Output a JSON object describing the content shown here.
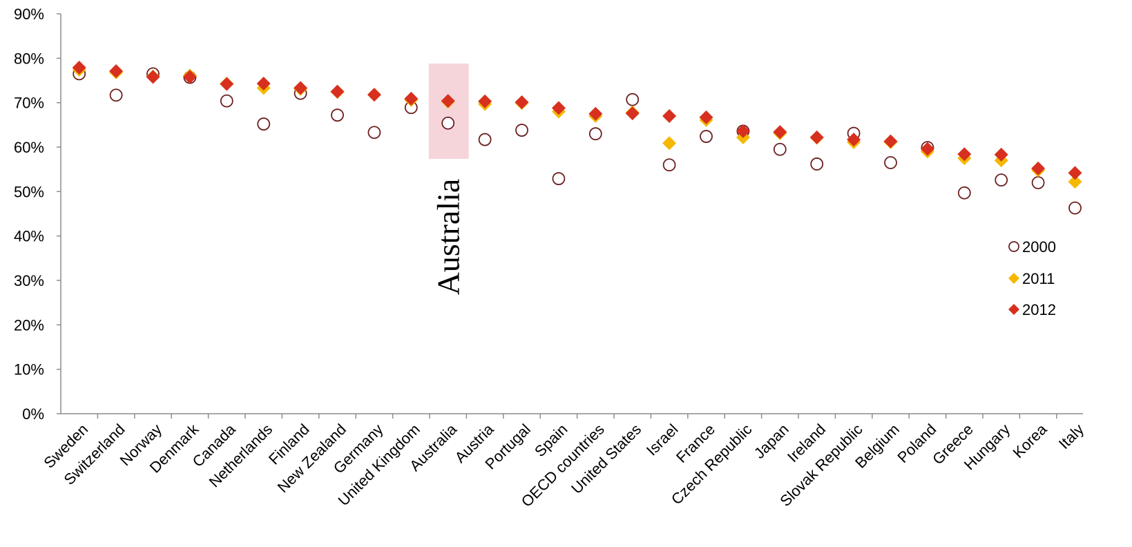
{
  "chart_data": {
    "type": "scatter",
    "title": "",
    "xlabel": "",
    "ylabel": "",
    "ylim": [
      0,
      0.9
    ],
    "y_ticks": [
      "0%",
      "10%",
      "20%",
      "30%",
      "40%",
      "50%",
      "60%",
      "70%",
      "80%",
      "90%"
    ],
    "grid": false,
    "legend_position": "right",
    "categories": [
      "Sweden",
      "Switzerland",
      "Norway",
      "Denmark",
      "Canada",
      "Netherlands",
      "Finland",
      "New Zealand",
      "Germany",
      "United Kingdom",
      "Australia",
      "Austria",
      "Portugal",
      "Spain",
      "OECD countries",
      "United States",
      "Israel",
      "France",
      "Czech Republic",
      "Japan",
      "Ireland",
      "Slovak Republic",
      "Belgium",
      "Poland",
      "Greece",
      "Hungary",
      "Korea",
      "Italy"
    ],
    "series": [
      {
        "name": "2000",
        "marker": "circle-open",
        "color": "#6b1f1f",
        "values": [
          0.765,
          0.717,
          0.765,
          0.757,
          0.704,
          0.652,
          0.721,
          0.672,
          0.633,
          0.689,
          0.654,
          0.617,
          0.638,
          0.529,
          0.63,
          0.707,
          0.56,
          0.624,
          0.636,
          0.595,
          0.562,
          0.631,
          0.565,
          0.599,
          0.497,
          0.526,
          0.52,
          0.463
        ]
      },
      {
        "name": "2011",
        "marker": "diamond",
        "color": "#f5b800",
        "values": [
          0.774,
          0.768,
          0.759,
          0.761,
          0.743,
          0.733,
          0.731,
          0.724,
          0.718,
          0.706,
          0.702,
          0.697,
          0.699,
          0.68,
          0.67,
          0.678,
          0.609,
          0.661,
          0.622,
          0.631,
          0.621,
          0.611,
          0.611,
          0.59,
          0.575,
          0.57,
          0.548,
          0.522
        ]
      },
      {
        "name": "2012",
        "marker": "diamond",
        "color": "#d7301f",
        "values": [
          0.779,
          0.771,
          0.758,
          0.758,
          0.742,
          0.743,
          0.733,
          0.725,
          0.718,
          0.709,
          0.704,
          0.703,
          0.701,
          0.688,
          0.675,
          0.676,
          0.67,
          0.667,
          0.636,
          0.634,
          0.622,
          0.617,
          0.613,
          0.596,
          0.584,
          0.583,
          0.552,
          0.542
        ]
      }
    ],
    "highlight": {
      "category": "Australia",
      "label": "Australia",
      "color": "#f6d5da"
    }
  }
}
